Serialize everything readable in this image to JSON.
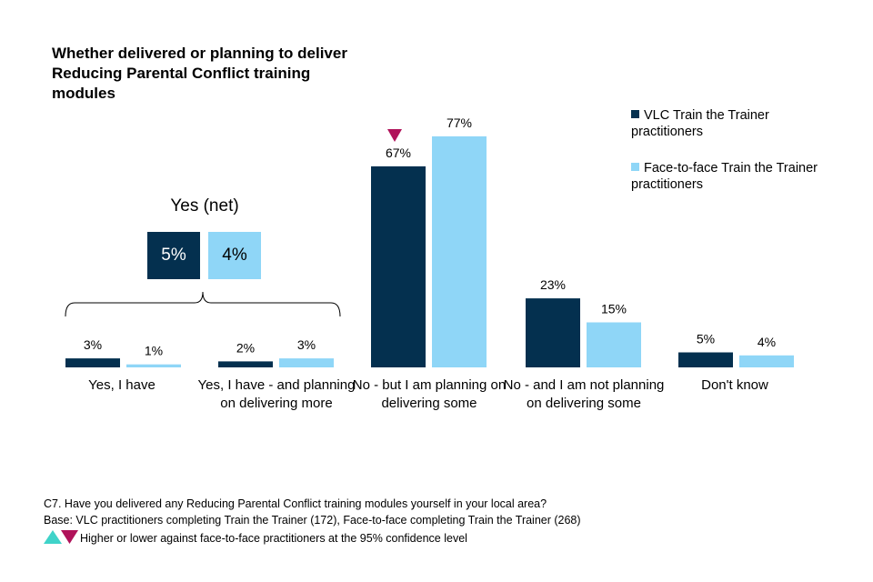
{
  "colors": {
    "series1": "#04304f",
    "series2": "#8fd6f7",
    "up_marker": "#3fd3c9",
    "down_marker": "#b0125a"
  },
  "chart_data": {
    "type": "bar",
    "title": "Whether delivered or planning to deliver Reducing Parental Conflict training modules",
    "categories": [
      "Yes, I have",
      "Yes, I have - and planning on delivering more",
      "No - but I am planning on delivering some",
      "No - and I am not planning on delivering some",
      "Don't know"
    ],
    "series": [
      {
        "name": "VLC Train the Trainer practitioners",
        "values": [
          3,
          2,
          67,
          23,
          5
        ],
        "labels": [
          "3%",
          "2%",
          "67%",
          "23%",
          "5%"
        ]
      },
      {
        "name": "Face-to-face Train the Trainer practitioners",
        "values": [
          1,
          3,
          77,
          15,
          4
        ],
        "labels": [
          "1%",
          "3%",
          "77%",
          "15%",
          "4%"
        ]
      }
    ],
    "significance_markers": [
      {
        "category": "No - but I am planning on delivering some",
        "series": "VLC Train the Trainer practitioners",
        "direction": "lower"
      }
    ],
    "net": {
      "label": "Yes (net)",
      "values": [
        "5%",
        "4%"
      ]
    },
    "legend_position": "top-right",
    "xlabel": "",
    "ylabel": "",
    "ylim": [
      0,
      100
    ]
  },
  "footnotes": {
    "question": "C7. Have you delivered any Reducing Parental Conflict training modules yourself in your local area?",
    "base": "Base: VLC practitioners completing Train the Trainer (172), Face-to-face completing Train the Trainer (268)",
    "significance": "Higher or lower against face-to-face practitioners at the 95% confidence level"
  }
}
